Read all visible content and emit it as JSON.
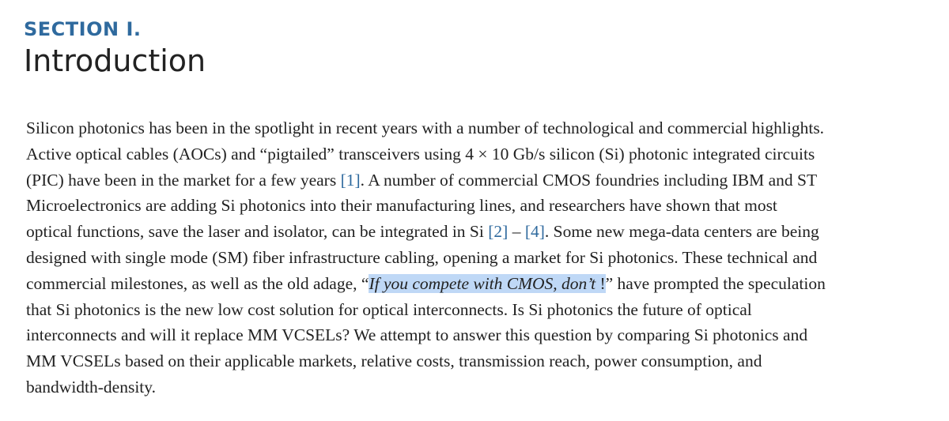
{
  "section": {
    "label": "SECTION I.",
    "title": "Introduction"
  },
  "paragraph": {
    "l1": "Silicon photonics has been in the spotlight in recent years with a number of technological and commercial highlights.",
    "l2": "Active optical cables (AOCs) and “pigtailed” transceivers using 4 × 10 Gb/s silicon (Si) photonic integrated circuits",
    "l3_a": "(PIC) have been in the market for a few years ",
    "ref1": "[1]",
    "l3_b": ". A number of commercial CMOS foundries including IBM and ST",
    "l4": "Microelectronics are adding Si photonics into their manufacturing lines, and researchers have shown that most",
    "l5_a": "optical functions, save the laser and isolator, can be integrated in Si  ",
    "ref2": "[2]",
    "l5_dash": " – ",
    "ref4": "[4]",
    "l5_b": ". Some new mega-data centers are being",
    "l6": "designed with single mode (SM) fiber infrastructure cabling, opening a market for Si photonics. These technical and",
    "l7_a": "commercial milestones, as well as the old adage, “",
    "l7_quote": "If you compete with CMOS, don’t",
    "l7_bang": " !",
    "l7_b": "” have prompted the speculation",
    "l8": "that Si photonics is the new low cost solution for optical interconnects. Is Si photonics the future of optical",
    "l9": "interconnects and will it replace MM VCSELs? We attempt to answer this question by comparing Si photonics and",
    "l10": "MM VCSELs based on their applicable markets, relative costs, transmission reach, power consumption, and",
    "l11": "bandwidth-density."
  },
  "colors": {
    "accent": "#2f6a9e",
    "text": "#222222",
    "highlight": "#bfd8f6"
  }
}
